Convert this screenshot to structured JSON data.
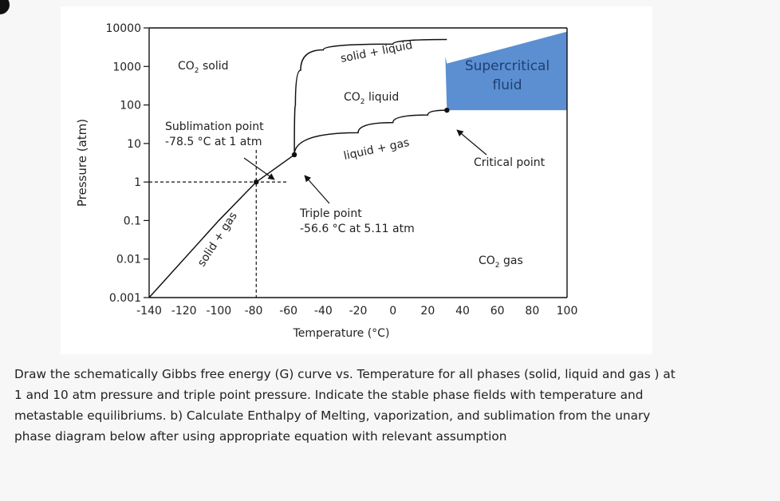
{
  "chart_data": {
    "type": "line",
    "title": "",
    "xlabel": "Temperature (°C)",
    "ylabel": "Pressure (atm)",
    "x_ticks": [
      "-140",
      "-120",
      "-100",
      "-80",
      "-60",
      "-40",
      "-20",
      "0",
      "20",
      "40",
      "60",
      "80",
      "100"
    ],
    "y_ticks": [
      "10000",
      "1000",
      "100",
      "10",
      "1",
      "0.1",
      "0.01",
      "0.001"
    ],
    "y_scale": "log",
    "xlim": [
      -140,
      100
    ],
    "ylim": [
      0.001,
      10000
    ],
    "grid": false,
    "series": [
      {
        "name": "",
        "role": "sublimation-curve",
        "points": [
          [
            -140,
            0.001
          ],
          [
            -100,
            0.1
          ],
          [
            -78.5,
            1
          ],
          [
            -56.6,
            5.11
          ]
        ]
      },
      {
        "name": "",
        "role": "vaporization-curve",
        "points": [
          [
            -56.6,
            5.11
          ],
          [
            -20,
            19
          ],
          [
            0,
            35
          ],
          [
            20,
            55
          ],
          [
            31,
            73
          ]
        ]
      },
      {
        "name": "",
        "role": "melting-curve",
        "points": [
          [
            -56.6,
            5.11
          ],
          [
            -56,
            100
          ],
          [
            -53,
            800
          ],
          [
            -40,
            2700
          ],
          [
            0,
            3800
          ],
          [
            31,
            5000
          ]
        ]
      }
    ],
    "supercritical_region": {
      "color": "#5b8fd1",
      "x": [
        31,
        100
      ],
      "y": [
        73,
        8000
      ]
    },
    "points": [
      {
        "name": "triple",
        "x": -56.6,
        "y": 5.11
      },
      {
        "name": "sublimation",
        "x": -78.5,
        "y": 1
      },
      {
        "name": "critical",
        "x": 31,
        "y": 73
      }
    ],
    "annotations": {
      "co2_solid": {
        "base": "CO",
        "sub": "2",
        "rest": " solid"
      },
      "co2_liquid": {
        "base": "CO",
        "sub": "2",
        "rest": " liquid"
      },
      "co2_gas": {
        "base": "CO",
        "sub": "2",
        "rest": " gas"
      },
      "solid_liquid": "solid + liquid",
      "liquid_gas": "liquid + gas",
      "solid_gas": "solid + gas",
      "supercritical": [
        "Supercritical",
        "fluid"
      ],
      "sublimation_point": [
        "Sublimation point",
        "-78.5 °C at 1 atm"
      ],
      "triple_point": [
        "Triple point",
        "-56.6 °C at 5.11 atm"
      ],
      "critical_point": "Critical point"
    }
  },
  "question": {
    "lines": [
      "Draw the schematically Gibbs free energy (G) curve vs. Temperature for all phases (solid, liquid and gas ) at",
      "1 and 10 atm pressure and triple point pressure. Indicate the stable phase fields with temperature and",
      "metastable equilibriums. b) Calculate Enthalpy of Melting, vaporization, and sublimation from the unary",
      "phase diagram below after using appropriate equation with relevant assumption"
    ]
  }
}
